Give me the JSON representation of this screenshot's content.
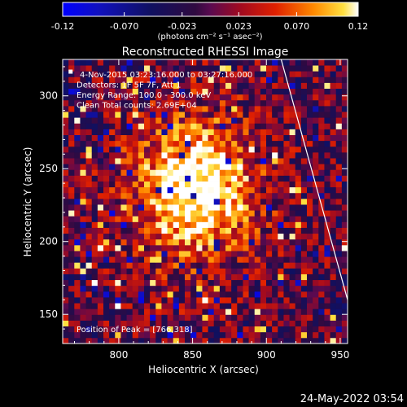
{
  "chart_data": {
    "type": "heatmap",
    "title": "Reconstructed RHESSI Image",
    "xlabel": "Heliocentric X (arcsec)",
    "ylabel": "Heliocentric Y (arcsec)",
    "xlim": [
      762,
      955
    ],
    "ylim": [
      130,
      325
    ],
    "x_ticks": [
      800,
      850,
      900,
      950
    ],
    "y_ticks": [
      150,
      200,
      250,
      300
    ],
    "info_lines": [
      "4-Nov-2015 03:23:16.000 to 03:27:16.000",
      "Detectors: 1F 5F 7F, Att 1",
      "Energy Range: 100.0 - 300.0 keV",
      "Clean     Total counts: 2.69E+04"
    ],
    "peak_label": "Position of Peak = [766,318]",
    "peak_position": [
      766,
      318
    ],
    "source_center": [
      853,
      238
    ],
    "limb_line": [
      [
        910,
        325
      ],
      [
        955,
        160
      ]
    ],
    "colorbar": {
      "min": -0.12,
      "max": 0.12,
      "tick_values": [
        -0.12,
        -0.07,
        -0.023,
        0.023,
        0.07,
        0.12
      ],
      "tick_labels": [
        "-0.12",
        "-0.070",
        "-0.023",
        "0.023",
        "0.070",
        "0.12"
      ],
      "unit_label": "(photons cm⁻² s⁻¹ asec⁻²)"
    },
    "timestamp": "24-May-2022 03:54"
  }
}
